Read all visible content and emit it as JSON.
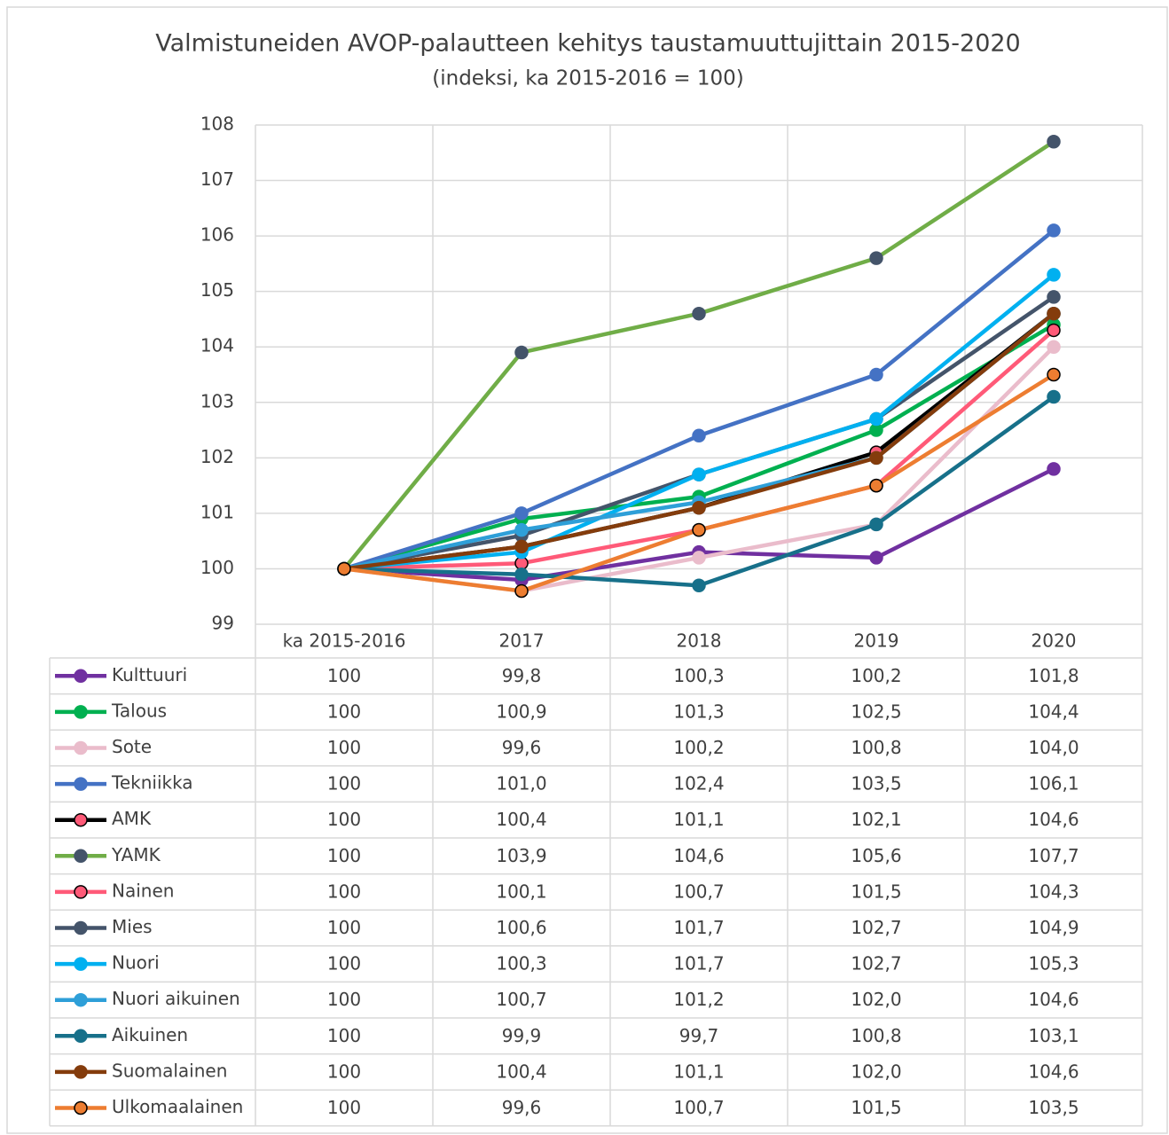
{
  "chart_data": {
    "type": "line",
    "title": "Valmistuneiden AVOP-palautteen kehitys taustamuuttujittain 2015-2020",
    "subtitle": "(indeksi, ka 2015-2016 = 100)",
    "categories": [
      "ka 2015-2016",
      "2017",
      "2018",
      "2019",
      "2020"
    ],
    "ylim": [
      99,
      108
    ],
    "yticks": [
      99,
      100,
      101,
      102,
      103,
      104,
      105,
      106,
      107,
      108
    ],
    "grid": true,
    "data_table": true,
    "series": [
      {
        "name": "Kulttuuri",
        "color": "#7030a0",
        "marker_color": "#7030a0",
        "values": [
          100,
          99.8,
          100.3,
          100.2,
          101.8
        ],
        "value_labels": [
          "100",
          "99,8",
          "100,3",
          "100,2",
          "101,8"
        ]
      },
      {
        "name": "Talous",
        "color": "#00b050",
        "marker_color": "#00b050",
        "values": [
          100,
          100.9,
          101.3,
          102.5,
          104.4
        ],
        "value_labels": [
          "100",
          "100,9",
          "101,3",
          "102,5",
          "104,4"
        ]
      },
      {
        "name": "Sote",
        "color": "#eabccb",
        "marker_color": "#eabccb",
        "values": [
          100,
          99.6,
          100.2,
          100.8,
          104.0
        ],
        "value_labels": [
          "100",
          "99,6",
          "100,2",
          "100,8",
          "104,0"
        ]
      },
      {
        "name": "Tekniikka",
        "color": "#4472c4",
        "marker_color": "#4472c4",
        "values": [
          100,
          101.0,
          102.4,
          103.5,
          106.1
        ],
        "value_labels": [
          "100",
          "101,0",
          "102,4",
          "103,5",
          "106,1"
        ]
      },
      {
        "name": "AMK",
        "color": "#000000",
        "marker_color": "#ff5a78",
        "marker_edge": "#000000",
        "values": [
          100,
          100.4,
          101.1,
          102.1,
          104.6
        ],
        "value_labels": [
          "100",
          "100,4",
          "101,1",
          "102,1",
          "104,6"
        ]
      },
      {
        "name": "YAMK",
        "color": "#70ad47",
        "marker_color": "#44546a",
        "values": [
          100,
          103.9,
          104.6,
          105.6,
          107.7
        ],
        "value_labels": [
          "100",
          "103,9",
          "104,6",
          "105,6",
          "107,7"
        ]
      },
      {
        "name": "Nainen",
        "color": "#ff5a78",
        "marker_color": "#ff5a78",
        "marker_edge": "#000000",
        "values": [
          100,
          100.1,
          100.7,
          101.5,
          104.3
        ],
        "value_labels": [
          "100",
          "100,1",
          "100,7",
          "101,5",
          "104,3"
        ]
      },
      {
        "name": "Mies",
        "color": "#44546a",
        "marker_color": "#44546a",
        "values": [
          100,
          100.6,
          101.7,
          102.7,
          104.9
        ],
        "value_labels": [
          "100",
          "100,6",
          "101,7",
          "102,7",
          "104,9"
        ]
      },
      {
        "name": "Nuori",
        "color": "#00b0f0",
        "marker_color": "#00b0f0",
        "values": [
          100,
          100.3,
          101.7,
          102.7,
          105.3
        ],
        "value_labels": [
          "100",
          "100,3",
          "101,7",
          "102,7",
          "105,3"
        ]
      },
      {
        "name": "Nuori aikuinen",
        "color": "#2e9fd8",
        "marker_color": "#2e9fd8",
        "values": [
          100,
          100.7,
          101.2,
          102.0,
          104.6
        ],
        "value_labels": [
          "100",
          "100,7",
          "101,2",
          "102,0",
          "104,6"
        ]
      },
      {
        "name": "Aikuinen",
        "color": "#17708a",
        "marker_color": "#17708a",
        "values": [
          100,
          99.9,
          99.7,
          100.8,
          103.1
        ],
        "value_labels": [
          "100",
          "99,9",
          "99,7",
          "100,8",
          "103,1"
        ]
      },
      {
        "name": "Suomalainen",
        "color": "#843c0c",
        "marker_color": "#843c0c",
        "values": [
          100,
          100.4,
          101.1,
          102.0,
          104.6
        ],
        "value_labels": [
          "100",
          "100,4",
          "101,1",
          "102,0",
          "104,6"
        ]
      },
      {
        "name": "Ulkomaalainen",
        "color": "#ed7d31",
        "marker_color": "#ed7d31",
        "marker_edge": "#000000",
        "values": [
          100,
          99.6,
          100.7,
          101.5,
          103.5
        ],
        "value_labels": [
          "100",
          "99,6",
          "100,7",
          "101,5",
          "103,5"
        ]
      }
    ]
  }
}
